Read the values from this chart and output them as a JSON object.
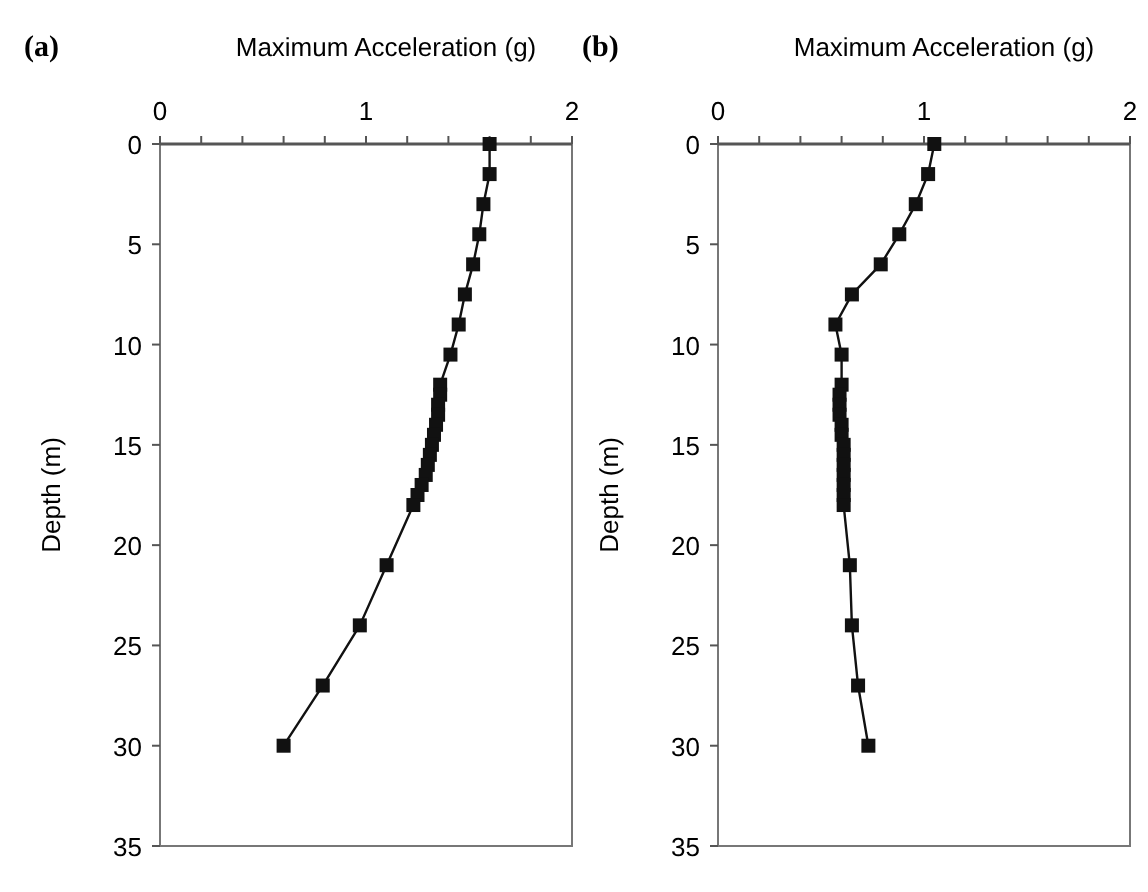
{
  "chart_data": [
    {
      "type": "line",
      "title": "(a)",
      "xlabel": "Maximum Acceleration (g)",
      "ylabel": "Depth (m)",
      "orientation": "horizontal",
      "marker": "square",
      "line_style": "solid",
      "xlim": [
        0,
        2
      ],
      "xticks": [
        0,
        {
          "value": 0.2,
          "label": null
        },
        {
          "value": 0.4,
          "label": null
        },
        {
          "value": 0.6,
          "label": null
        },
        {
          "value": 0.8,
          "label": null
        },
        1,
        {
          "value": 1.2,
          "label": null
        },
        {
          "value": 1.4,
          "label": null
        },
        {
          "value": 1.6,
          "label": null
        },
        {
          "value": 1.8,
          "label": null
        },
        2
      ],
      "ylim": [
        35,
        0
      ],
      "yticks": [
        0,
        5,
        10,
        15,
        20,
        25,
        30,
        35
      ],
      "x": [
        0,
        1.5,
        3,
        4.5,
        6,
        7.5,
        9,
        10.5,
        12,
        12.5,
        13,
        13.5,
        14,
        14.5,
        15,
        15.5,
        16,
        16.5,
        17,
        17.5,
        18,
        21,
        24,
        27,
        30
      ],
      "series": [
        {
          "color": "#111111",
          "values": [
            1.6,
            1.6,
            1.57,
            1.55,
            1.52,
            1.48,
            1.45,
            1.41,
            1.36,
            1.36,
            1.35,
            1.35,
            1.34,
            1.33,
            1.32,
            1.31,
            1.3,
            1.29,
            1.27,
            1.25,
            1.23,
            1.1,
            0.97,
            0.79,
            0.6
          ]
        }
      ]
    },
    {
      "type": "line",
      "title": "(b)",
      "xlabel": "Maximum Acceleration (g)",
      "ylabel": "Depth (m)",
      "orientation": "horizontal",
      "marker": "square",
      "line_style": "solid",
      "xlim": [
        0,
        2
      ],
      "xticks": [
        0,
        {
          "value": 0.2,
          "label": null
        },
        {
          "value": 0.4,
          "label": null
        },
        {
          "value": 0.6,
          "label": null
        },
        {
          "value": 0.8,
          "label": null
        },
        1,
        {
          "value": 1.2,
          "label": null
        },
        {
          "value": 1.4,
          "label": null
        },
        {
          "value": 1.6,
          "label": null
        },
        {
          "value": 1.8,
          "label": null
        },
        2
      ],
      "ylim": [
        35,
        0
      ],
      "yticks": [
        0,
        5,
        10,
        15,
        20,
        25,
        30,
        35
      ],
      "x": [
        0,
        1.5,
        3,
        4.5,
        6,
        7.5,
        9,
        10.5,
        12,
        12.5,
        13,
        13.5,
        14,
        14.5,
        15,
        15.5,
        16,
        16.5,
        17,
        17.5,
        18,
        21,
        24,
        27,
        30
      ],
      "series": [
        {
          "color": "#111111",
          "values": [
            1.05,
            1.02,
            0.96,
            0.88,
            0.79,
            0.65,
            0.57,
            0.6,
            0.6,
            0.59,
            0.59,
            0.59,
            0.6,
            0.6,
            0.61,
            0.61,
            0.61,
            0.61,
            0.61,
            0.61,
            0.61,
            0.64,
            0.65,
            0.68,
            0.73
          ]
        }
      ]
    }
  ]
}
